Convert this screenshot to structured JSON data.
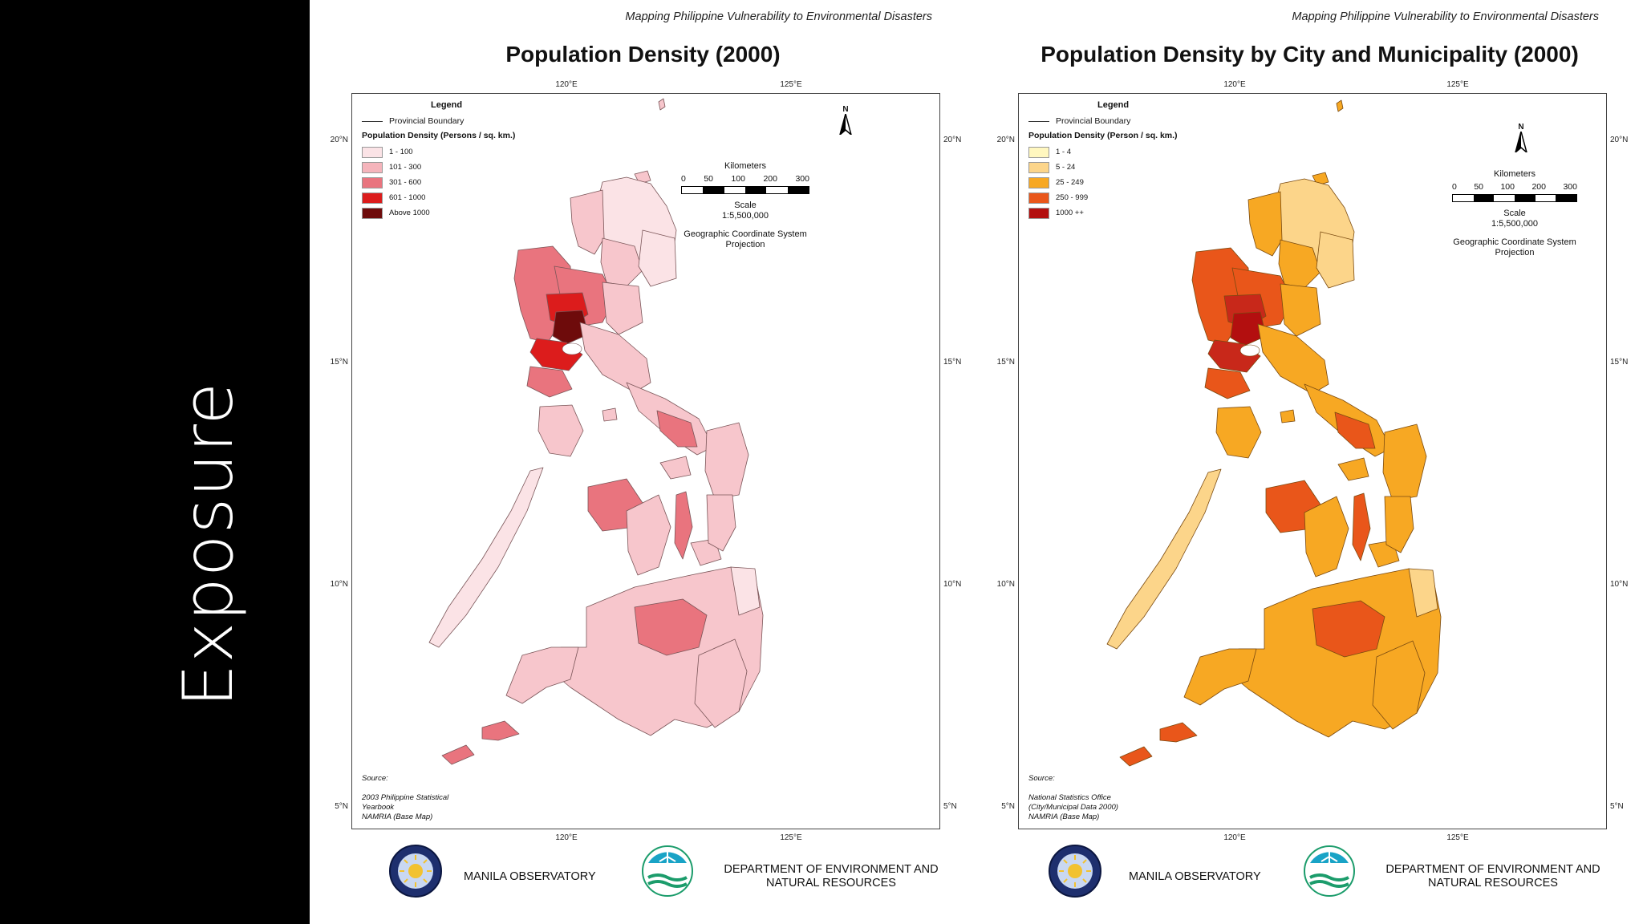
{
  "slide": {
    "title": "Exposure"
  },
  "panels": [
    {
      "header_note": "Mapping Philippine Vulnerability to Environmental Disasters",
      "title": "Population Density (2000)",
      "lon_ticks": [
        "120°E",
        "125°E"
      ],
      "lat_ticks": [
        "20°N",
        "15°N",
        "10°N",
        "5°N"
      ],
      "legend": {
        "title": "Legend",
        "boundary_label": "Provincial Boundary",
        "subtitle": "Population Density (Persons / sq. km.)",
        "classes": [
          {
            "label": "1 - 100",
            "color": "#fbe3e6"
          },
          {
            "label": "101 - 300",
            "color": "#f5b4bb"
          },
          {
            "label": "301 - 600",
            "color": "#e9747e"
          },
          {
            "label": "601 - 1000",
            "color": "#dc1c1c"
          },
          {
            "label": "Above 1000",
            "color": "#6e0b0b"
          }
        ]
      },
      "north_label": "N",
      "scale": {
        "unit": "Kilometers",
        "ticks": [
          "0",
          "50",
          "100",
          "200",
          "300"
        ],
        "label": "Scale",
        "ratio": "1:5,500,000",
        "gcs_line1": "Geographic Coordinate System",
        "gcs_line2": "Projection"
      },
      "source": {
        "label": "Source:",
        "lines": [
          "2003 Philippine Statistical",
          "Yearbook",
          "NAMRIA (Base Map)"
        ]
      },
      "map_palette": {
        "base": "#f7c6cc",
        "light": "#fbe3e6",
        "mid": "#e9747e",
        "high": "#dc1c1c",
        "top": "#6e0b0b"
      }
    },
    {
      "header_note": "Mapping Philippine Vulnerability to Environmental Disasters",
      "title": "Population Density by City and Municipality (2000)",
      "lon_ticks": [
        "120°E",
        "125°E"
      ],
      "lat_ticks": [
        "20°N",
        "15°N",
        "10°N",
        "5°N"
      ],
      "legend": {
        "title": "Legend",
        "boundary_label": "Provincial Boundary",
        "subtitle": "Population Density (Person / sq. km.)",
        "classes": [
          {
            "label": "1 - 4",
            "color": "#fff7bf"
          },
          {
            "label": "5 - 24",
            "color": "#fcd58a"
          },
          {
            "label": "25 - 249",
            "color": "#f7a823"
          },
          {
            "label": "250 - 999",
            "color": "#e9561a"
          },
          {
            "label": "1000 ++",
            "color": "#b30f0f"
          }
        ]
      },
      "north_label": "N",
      "scale": {
        "unit": "Kilometers",
        "ticks": [
          "0",
          "50",
          "100",
          "200",
          "300"
        ],
        "label": "Scale",
        "ratio": "1:5,500,000",
        "gcs_line1": "Geographic Coordinate System",
        "gcs_line2": "Projection"
      },
      "source": {
        "label": "Source:",
        "lines": [
          "National Statistics Office",
          "(City/Municipal Data 2000)",
          "NAMRIA (Base Map)"
        ]
      },
      "map_palette": {
        "base": "#f7a823",
        "light": "#fcd58a",
        "mid": "#e9561a",
        "high": "#c8281a",
        "top": "#b30f0f"
      }
    }
  ],
  "footer": {
    "org1": "MANILA OBSERVATORY",
    "org2_line1": "DEPARTMENT OF ENVIRONMENT AND",
    "org2_line2": "NATURAL RESOURCES"
  }
}
